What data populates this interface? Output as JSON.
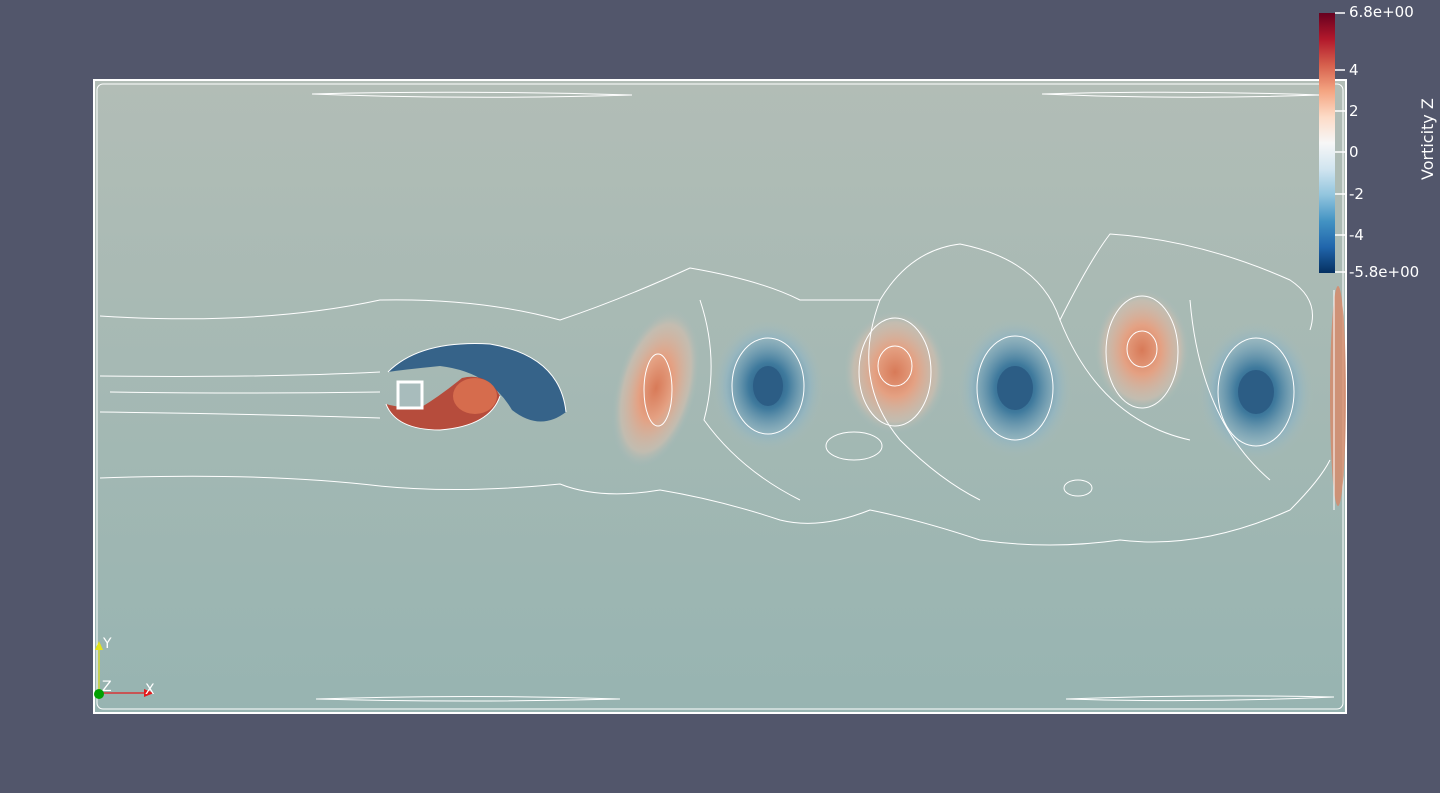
{
  "scene": {
    "background_color": "#52566b",
    "domain_fill_top": "#b1bdb5",
    "domain_fill_bottom": "#97b4b1",
    "contour_color": "#ffffff",
    "obstacle": "square-cylinder"
  },
  "color_legend": {
    "title": "Vorticity Z",
    "max_label": "6.8e+00",
    "min_label": "-5.8e+00",
    "range": [
      -5.8,
      6.8
    ],
    "ticks": [
      "4",
      "2",
      "0",
      "-2",
      "-4"
    ],
    "colormap": [
      "#67001f",
      "#b2182b",
      "#d6604d",
      "#f4a582",
      "#fddbc7",
      "#f7f7f7",
      "#d1e5f0",
      "#92c5de",
      "#4393c3",
      "#2166ac",
      "#053061"
    ]
  },
  "orientation_axes": {
    "y_label": "Y",
    "z_label": "Z",
    "x_label": "X",
    "x_color": "#e31a1c",
    "y_color": "#e3e31a",
    "z_color": "#00a000"
  },
  "vortices": [
    {
      "sign": "negative",
      "strength": 0.55
    },
    {
      "sign": "positive",
      "strength": 0.4
    },
    {
      "sign": "negative",
      "strength": 0.5
    },
    {
      "sign": "positive",
      "strength": 0.35
    },
    {
      "sign": "negative",
      "strength": 0.5
    },
    {
      "sign": "positive",
      "strength": 0.35
    },
    {
      "sign": "negative",
      "strength": 0.45
    }
  ]
}
